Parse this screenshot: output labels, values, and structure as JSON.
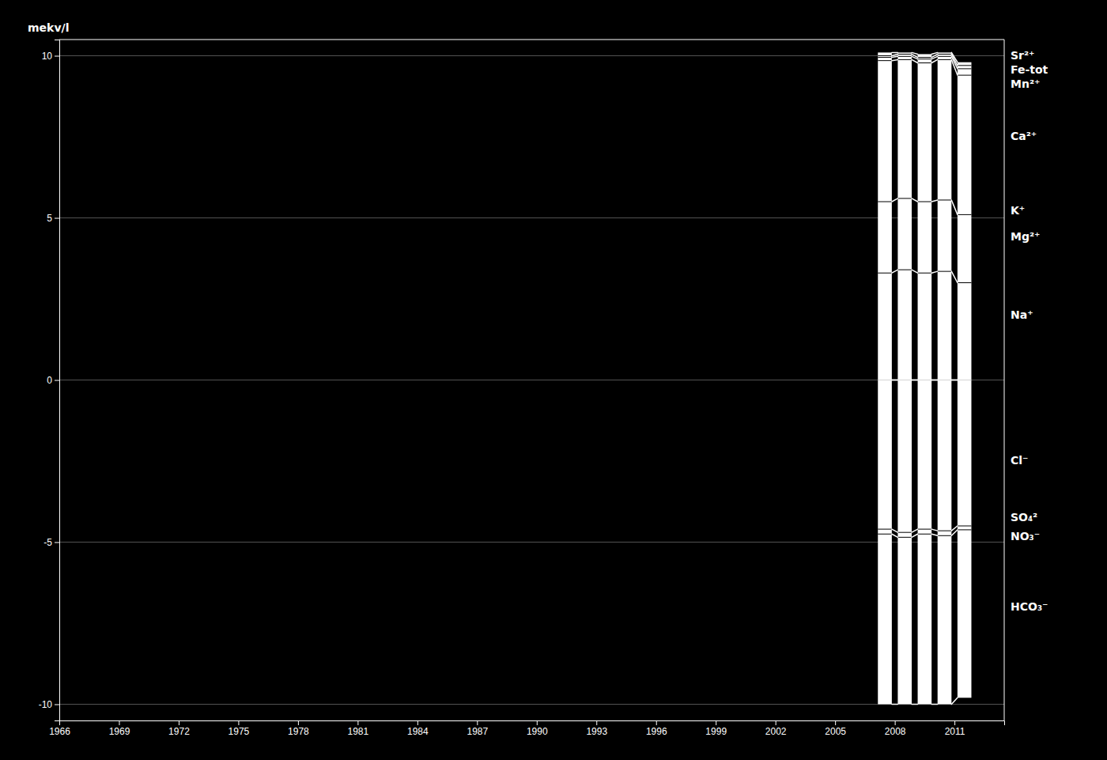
{
  "chart_data": {
    "type": "column",
    "ylabel": "mekv/l",
    "x": [
      2007.5,
      2008.5,
      2009.5,
      2010.5,
      2011.5
    ],
    "cation_boundaries": [
      [
        10.1,
        10.1,
        10.05,
        10.1,
        9.8
      ],
      [
        10.0,
        10.05,
        9.95,
        10.05,
        9.7
      ],
      [
        9.95,
        9.98,
        9.9,
        9.98,
        9.6
      ],
      [
        9.85,
        9.88,
        9.78,
        9.88,
        9.4
      ],
      [
        5.5,
        5.6,
        5.5,
        5.55,
        5.1
      ],
      [
        3.3,
        3.4,
        3.3,
        3.35,
        3.0
      ],
      [
        0.0,
        0.0,
        0.0,
        0.0,
        0.0
      ]
    ],
    "anion_boundaries": [
      [
        0.0,
        0.0,
        0.0,
        0.0,
        0.0
      ],
      [
        -4.6,
        -4.7,
        -4.6,
        -4.65,
        -4.5
      ],
      [
        -4.75,
        -4.85,
        -4.75,
        -4.8,
        -4.62
      ],
      [
        -10.0,
        -10.0,
        -10.0,
        -10.0,
        -9.8
      ]
    ],
    "color": "#ffffff",
    "xlim": [
      1966,
      2013.5
    ],
    "xticks": [
      1966,
      1969,
      1972,
      1975,
      1978,
      1981,
      1984,
      1987,
      1990,
      1993,
      1996,
      1999,
      2002,
      2005,
      2008,
      2011
    ],
    "ylim": [
      -10.5,
      10.5
    ],
    "yticks": [
      -10,
      -5,
      0,
      5,
      10
    ],
    "grid": "y",
    "annotations": [
      {
        "text": "Sr²⁺",
        "y": 10.0
      },
      {
        "text": "Fe-tot",
        "y": 9.55
      },
      {
        "text": "Mn²⁺",
        "y": 9.1
      },
      {
        "text": "Ca²⁺",
        "y": 7.5
      },
      {
        "text": "K⁺",
        "y": 5.2
      },
      {
        "text": "Mg²⁺",
        "y": 4.4
      },
      {
        "text": "Na⁺",
        "y": 2.0
      },
      {
        "text": "Cl⁻",
        "y": -2.5
      },
      {
        "text": "SO₄²",
        "y": -4.25
      },
      {
        "text": "NO₃⁻",
        "y": -4.85
      },
      {
        "text": "HCO₃⁻",
        "y": -7.0
      }
    ]
  }
}
